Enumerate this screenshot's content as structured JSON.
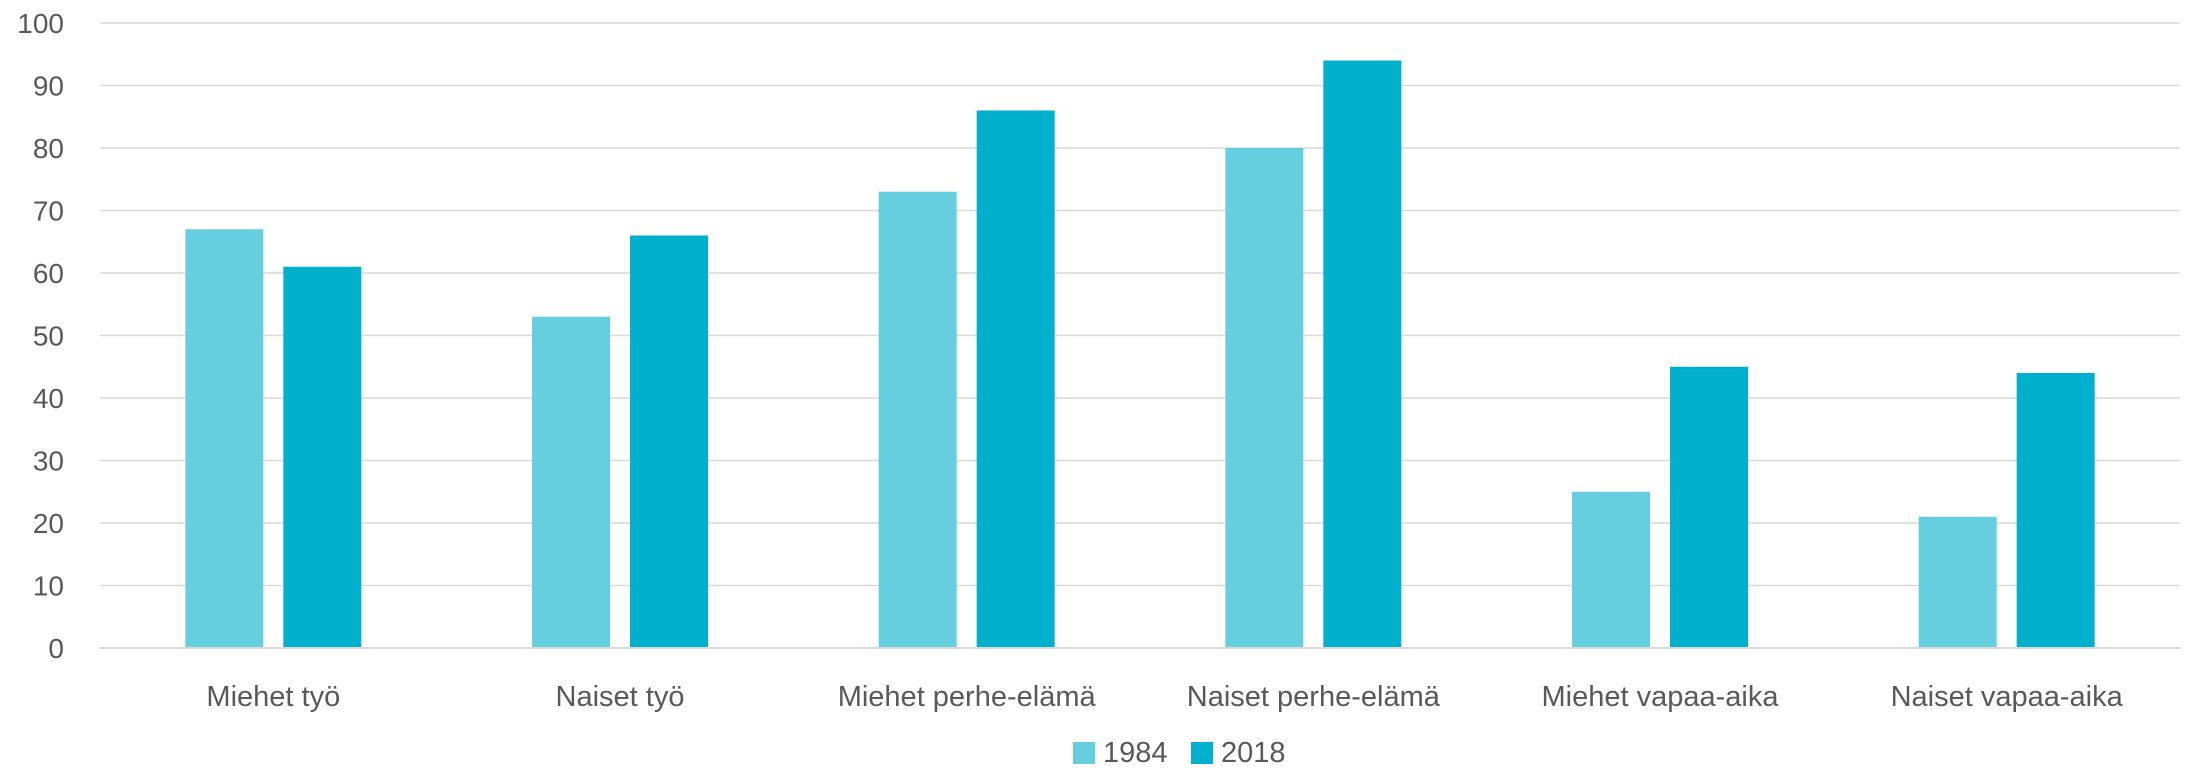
{
  "chart_data": {
    "type": "bar",
    "categories": [
      "Miehet työ",
      "Naiset työ",
      "Miehet perhe-elämä",
      "Naiset perhe-elämä",
      "Miehet vapaa-aika",
      "Naiset vapaa-aika"
    ],
    "series": [
      {
        "name": "1984",
        "color": "#66cfdf",
        "values": [
          67,
          53,
          73,
          80,
          25,
          21
        ]
      },
      {
        "name": "2018",
        "color": "#00b0cc",
        "values": [
          61,
          66,
          86,
          94,
          45,
          44
        ]
      }
    ],
    "ylim": [
      0,
      100
    ],
    "yticks": [
      0,
      10,
      20,
      30,
      40,
      50,
      60,
      70,
      80,
      90,
      100
    ],
    "grid": true,
    "legend": "bottom-center"
  }
}
